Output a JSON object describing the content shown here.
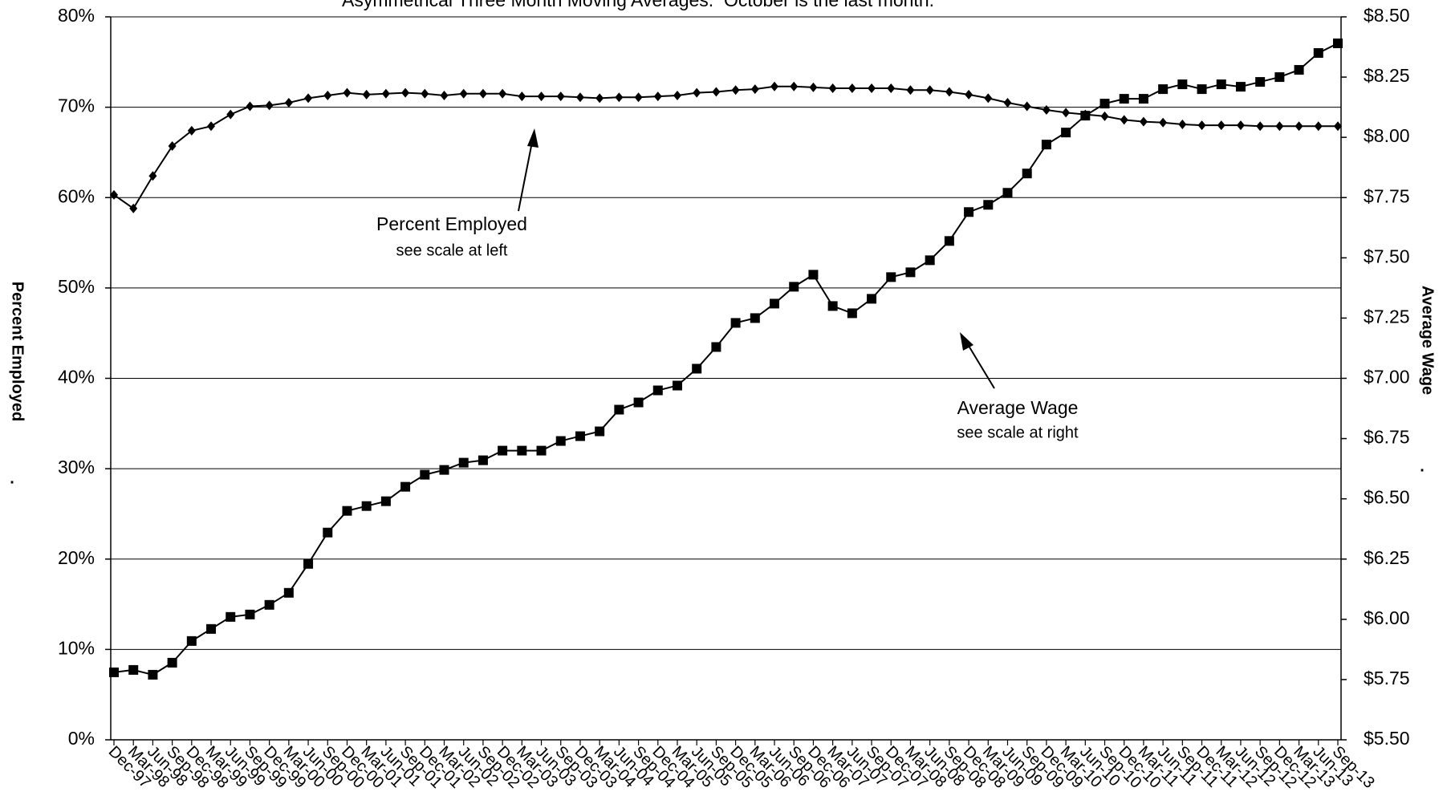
{
  "chart_data": {
    "type": "line",
    "title": "Asymmetrical Three Month Moving Averages.  October is the last month.",
    "ylabel": "Percent Employed",
    "ylabel_mark": ".",
    "y2label": "Average Wage",
    "y2label_mark": ".",
    "annotations": [
      {
        "text": "Percent Employed",
        "subtext": "see scale at left"
      },
      {
        "text": "Average Wage",
        "subtext": "see scale at right"
      }
    ],
    "categories": [
      "Dec-97",
      "Mar-98",
      "Jun-98",
      "Sep-98",
      "Dec-98",
      "Mar-99",
      "Jun-99",
      "Sep-99",
      "Dec-99",
      "Mar-00",
      "Jun-00",
      "Sep-00",
      "Dec-00",
      "Mar-01",
      "Jun-01",
      "Sep-01",
      "Dec-01",
      "Mar-02",
      "Jun-02",
      "Sep-02",
      "Dec-02",
      "Mar-03",
      "Jun-03",
      "Sep-03",
      "Dec-03",
      "Mar-04",
      "Jun-04",
      "Sep-04",
      "Dec-04",
      "Mar-05",
      "Jun-05",
      "Sep-05",
      "Dec-05",
      "Mar-06",
      "Jun-06",
      "Sep-06",
      "Dec-06",
      "Mar-07",
      "Jun-07",
      "Sep-07",
      "Dec-07",
      "Mar-08",
      "Jun-08",
      "Sep-08",
      "Dec-08",
      "Mar-09",
      "Jun-09",
      "Sep-09",
      "Dec-09",
      "Mar-10",
      "Jun-10",
      "Sep-10",
      "Dec-10",
      "Mar-11",
      "Jun-11",
      "Sep-11",
      "Dec-11",
      "Mar-12",
      "Jun-12",
      "Sep-12",
      "Dec-12",
      "Mar-13",
      "Jun-13",
      "Sep-13"
    ],
    "series": [
      {
        "name": "Percent Employed",
        "color": "#000000",
        "marker": "diamond",
        "values": [
          60.3,
          58.8,
          62.4,
          65.7,
          67.4,
          67.9,
          69.2,
          70.1,
          70.2,
          70.5,
          71.0,
          71.3,
          71.6,
          71.4,
          71.5,
          71.6,
          71.5,
          71.3,
          71.5,
          71.5,
          71.5,
          71.2,
          71.2,
          71.2,
          71.1,
          71.0,
          71.1,
          71.1,
          71.2,
          71.3,
          71.6,
          71.7,
          71.9,
          72.0,
          72.3,
          72.3,
          72.2,
          72.1,
          72.1,
          72.1,
          72.1,
          71.9,
          71.9,
          71.7,
          71.4,
          71.0,
          70.5,
          70.1,
          69.7,
          69.4,
          69.2,
          69.0,
          68.6,
          68.4,
          68.3,
          68.1,
          68.0,
          68.0,
          68.0,
          67.9,
          67.9,
          67.9,
          67.9,
          67.9
        ]
      },
      {
        "name": "Average Wage",
        "color": "#000000",
        "marker": "square",
        "axis": "y2",
        "values": [
          5.78,
          5.79,
          5.77,
          5.82,
          5.91,
          5.96,
          6.01,
          6.02,
          6.06,
          6.11,
          6.23,
          6.36,
          6.45,
          6.47,
          6.49,
          6.55,
          6.6,
          6.62,
          6.65,
          6.66,
          6.7,
          6.7,
          6.7,
          6.74,
          6.76,
          6.78,
          6.87,
          6.9,
          6.95,
          6.97,
          7.04,
          7.13,
          7.23,
          7.25,
          7.31,
          7.38,
          7.43,
          7.3,
          7.27,
          7.33,
          7.42,
          7.44,
          7.49,
          7.57,
          7.69,
          7.72,
          7.77,
          7.85,
          7.97,
          8.02,
          8.09,
          8.14,
          8.16,
          8.16,
          8.2,
          8.22,
          8.2,
          8.22,
          8.21,
          8.23,
          8.25,
          8.28,
          8.35,
          8.39
        ]
      }
    ],
    "ylim": [
      0,
      80
    ],
    "yticks": [
      {
        "value": 0,
        "label": "0%"
      },
      {
        "value": 10,
        "label": "10%"
      },
      {
        "value": 20,
        "label": "20%"
      },
      {
        "value": 30,
        "label": "30%"
      },
      {
        "value": 40,
        "label": "40%"
      },
      {
        "value": 50,
        "label": "50%"
      },
      {
        "value": 60,
        "label": "60%"
      },
      {
        "value": 70,
        "label": "70%"
      },
      {
        "value": 80,
        "label": "80%"
      }
    ],
    "y2lim": [
      5.5,
      8.5
    ],
    "y2ticks": [
      {
        "value": 5.5,
        "label": "$5.50"
      },
      {
        "value": 5.75,
        "label": "$5.75"
      },
      {
        "value": 6.0,
        "label": "$6.00"
      },
      {
        "value": 6.25,
        "label": "$6.25"
      },
      {
        "value": 6.5,
        "label": "$6.50"
      },
      {
        "value": 6.75,
        "label": "$6.75"
      },
      {
        "value": 7.0,
        "label": "$7.00"
      },
      {
        "value": 7.25,
        "label": "$7.25"
      },
      {
        "value": 7.5,
        "label": "$7.50"
      },
      {
        "value": 7.75,
        "label": "$7.75"
      },
      {
        "value": 8.0,
        "label": "$8.00"
      },
      {
        "value": 8.25,
        "label": "$8.25"
      },
      {
        "value": 8.5,
        "label": "$8.50"
      }
    ],
    "grid": true
  }
}
